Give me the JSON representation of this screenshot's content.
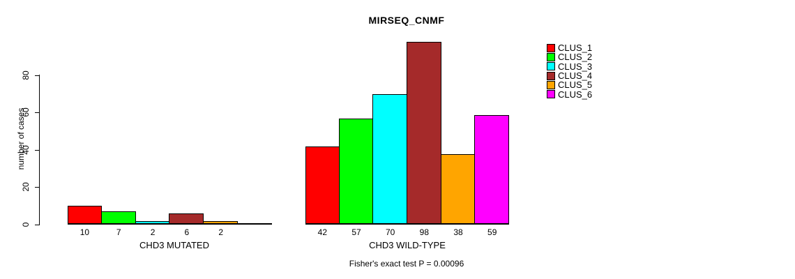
{
  "title": "MIRSEQ_CNMF",
  "annotation": "Fisher's exact test P = 0.00096",
  "chart_data": {
    "type": "bar",
    "title": "MIRSEQ_CNMF",
    "xlabel": "",
    "ylabel": "number of cases",
    "ylim": [
      0,
      100
    ],
    "yticks": [
      0,
      20,
      40,
      60,
      80
    ],
    "grid": false,
    "legend": {
      "position": "top-right",
      "entries": [
        {
          "label": "CLUS_1",
          "color": "#FF0000"
        },
        {
          "label": "CLUS_2",
          "color": "#00FF00"
        },
        {
          "label": "CLUS_3",
          "color": "#00FFFF"
        },
        {
          "label": "CLUS_4",
          "color": "#A52A2A"
        },
        {
          "label": "CLUS_5",
          "color": "#FFA500"
        },
        {
          "label": "CLUS_6",
          "color": "#FF00FF"
        }
      ]
    },
    "groups": [
      {
        "label": "CHD3 MUTATED",
        "categories": [
          "CLUS_1",
          "CLUS_2",
          "CLUS_3",
          "CLUS_4",
          "CLUS_5",
          "CLUS_6"
        ],
        "values": [
          10,
          7,
          2,
          6,
          2,
          0
        ],
        "bar_labels": [
          "10",
          "7",
          "2",
          "6",
          "2",
          ""
        ]
      },
      {
        "label": "CHD3 WILD-TYPE",
        "categories": [
          "CLUS_1",
          "CLUS_2",
          "CLUS_3",
          "CLUS_4",
          "CLUS_5",
          "CLUS_6"
        ],
        "values": [
          42,
          57,
          70,
          98,
          38,
          59
        ],
        "bar_labels": [
          "42",
          "57",
          "70",
          "98",
          "38",
          "59"
        ]
      }
    ],
    "annotation": "Fisher's exact test P = 0.00096"
  }
}
